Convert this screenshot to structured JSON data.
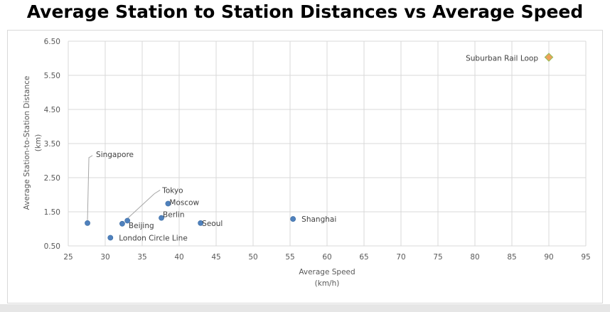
{
  "page": {
    "title": "Average Station to Station Distances vs Average Speed"
  },
  "colors": {
    "grid": "#d9d9d9",
    "marker": "#4f81bd",
    "marker_stroke": "#3a6aa0",
    "highlight_fill": "#f0a05a",
    "highlight_stroke": "#9bbb59",
    "text": "#595959",
    "leader": "#a6a6a6"
  },
  "chart_data": {
    "type": "scatter",
    "title": "Average Station to Station Distances vs Average Speed",
    "xlabel_lines": [
      "Average Speed",
      "(km/h)"
    ],
    "ylabel_lines": [
      "Average Station-to-Station Distance",
      "(km)"
    ],
    "xlim": [
      25,
      95
    ],
    "ylim": [
      0.5,
      6.5
    ],
    "x_ticks": [
      25,
      30,
      35,
      40,
      45,
      50,
      55,
      60,
      65,
      70,
      75,
      80,
      85,
      90,
      95
    ],
    "x_tick_labels": [
      "25",
      "30",
      "35",
      "40",
      "45",
      "50",
      "55",
      "60",
      "65",
      "70",
      "75",
      "80",
      "85",
      "90",
      "95"
    ],
    "y_ticks": [
      0.5,
      1.5,
      2.5,
      3.5,
      4.5,
      5.5,
      6.5
    ],
    "y_tick_labels": [
      "0.50",
      "1.50",
      "2.50",
      "3.50",
      "4.50",
      "5.50",
      "6.50"
    ],
    "grid": true,
    "points": [
      {
        "label": "Singapore",
        "x": 27.6,
        "y": 1.17,
        "marker": "circle"
      },
      {
        "label": "London Circle Line",
        "x": 30.7,
        "y": 0.74,
        "marker": "circle"
      },
      {
        "label": "Beijing",
        "x": 32.3,
        "y": 1.15,
        "marker": "circle"
      },
      {
        "label": "Tokyo",
        "x": 33.0,
        "y": 1.24,
        "marker": "circle"
      },
      {
        "label": "Berlin",
        "x": 37.6,
        "y": 1.32,
        "marker": "circle"
      },
      {
        "label": "Moscow",
        "x": 38.5,
        "y": 1.74,
        "marker": "circle"
      },
      {
        "label": "Seoul",
        "x": 42.9,
        "y": 1.17,
        "marker": "circle"
      },
      {
        "label": "Shanghai",
        "x": 55.4,
        "y": 1.29,
        "marker": "circle"
      },
      {
        "label": "Suburban Rail Loop",
        "x": 90.0,
        "y": 6.03,
        "marker": "diamond"
      }
    ]
  }
}
